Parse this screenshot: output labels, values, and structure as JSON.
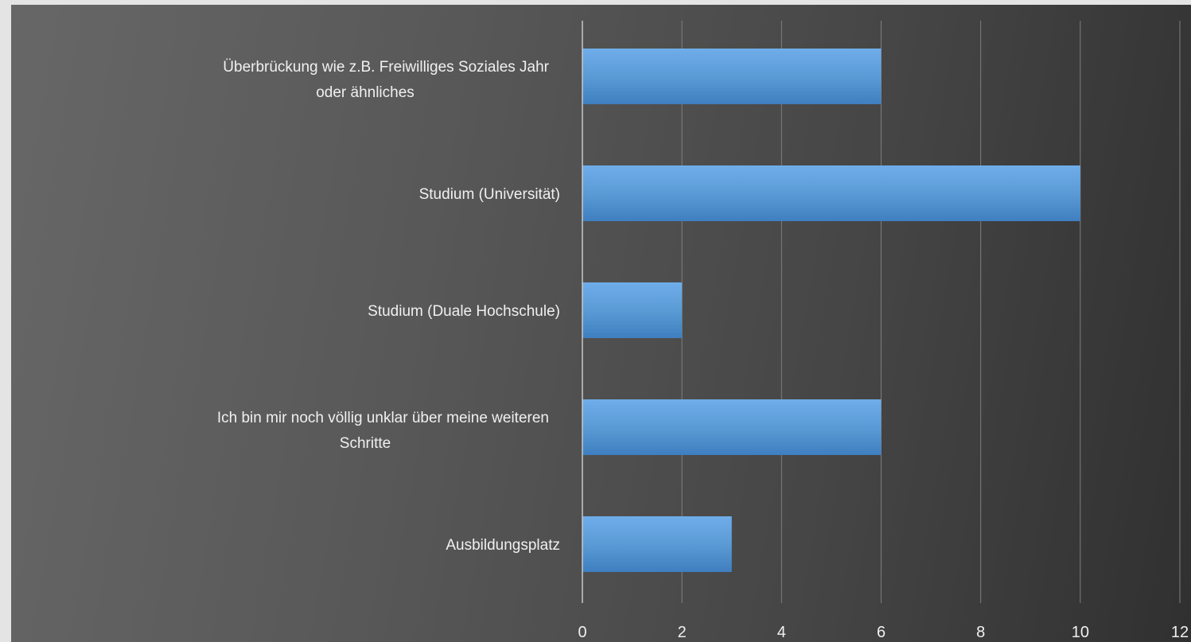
{
  "chart_data": {
    "type": "bar",
    "orientation": "horizontal",
    "categories": [
      "Ausbildungsplatz",
      "Ich bin mir noch völlig unklar über meine weiteren Schritte",
      "Studium (Duale Hochschule)",
      "Studium (Universität)",
      "Überbrückung wie z.B. Freiwilliges Soziales Jahr oder ähnliches"
    ],
    "values": [
      3,
      6,
      2,
      10,
      6
    ],
    "xlim": [
      0,
      12
    ],
    "xticks": [
      "0",
      "2",
      "4",
      "6",
      "8",
      "10",
      "12"
    ],
    "title": "",
    "xlabel": "",
    "ylabel": "",
    "grid": "vertical",
    "legend": "none",
    "bar_color": "#5b9bd5",
    "background_color": "#4a4a4a"
  }
}
